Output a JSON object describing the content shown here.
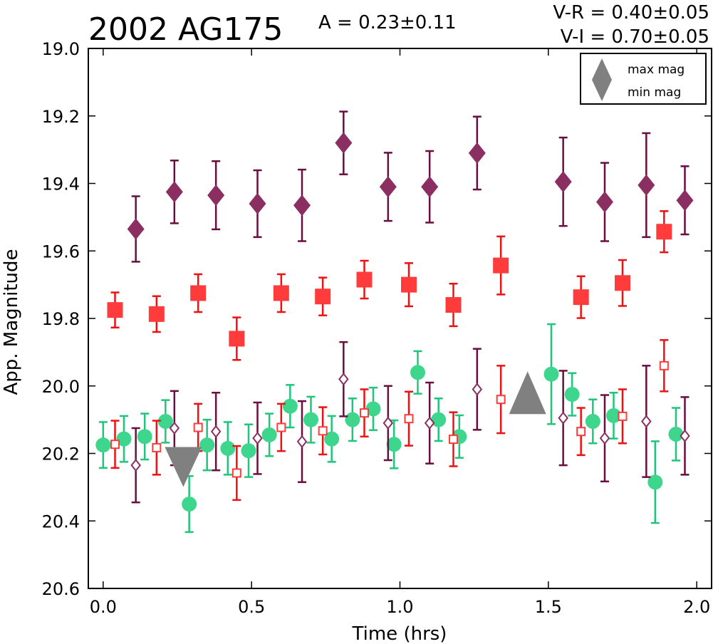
{
  "chart_data": {
    "type": "scatter",
    "title": "2002 AG175",
    "annotations": {
      "amplitude": "A  = 0.23±0.11",
      "v_r": "V-R = 0.40±0.05",
      "v_i": "V-I  = 0.70±0.05"
    },
    "xlabel": "Time (hrs)",
    "ylabel": "App. Magnitude",
    "xlim": [
      -0.05,
      2.05
    ],
    "ylim": [
      20.6,
      19.0
    ],
    "y_inverted": true,
    "x_ticks": [
      "0.0",
      "0.5",
      "1.0",
      "1.5",
      "2.0"
    ],
    "x_tick_values": [
      0.0,
      0.5,
      1.0,
      1.5,
      2.0
    ],
    "y_ticks": [
      "19.0",
      "19.2",
      "19.4",
      "19.6",
      "19.8",
      "20.0",
      "20.2",
      "20.4",
      "20.6"
    ],
    "y_tick_values": [
      19.0,
      19.2,
      19.4,
      19.6,
      19.8,
      20.0,
      20.2,
      20.4,
      20.6
    ],
    "grid": false,
    "legend_position": "top-right",
    "legend": [
      {
        "label": "max mag",
        "marker": "triangle-up",
        "color": "#808080"
      },
      {
        "label": "min mag",
        "marker": "triangle-down",
        "color": "#808080"
      }
    ],
    "extrema": {
      "max": {
        "x": 1.43,
        "y": 20.02,
        "color": "#808080"
      },
      "min": {
        "x": 0.27,
        "y": 20.24,
        "color": "#808080"
      }
    },
    "series": [
      {
        "marker": "diamond",
        "fill": "#8b2f62",
        "errcolor": "#6a0d3f",
        "points": [
          {
            "x": 0.11,
            "y": 19.535,
            "err": 0.097
          },
          {
            "x": 0.24,
            "y": 19.425,
            "err": 0.093
          },
          {
            "x": 0.38,
            "y": 19.435,
            "err": 0.101
          },
          {
            "x": 0.52,
            "y": 19.46,
            "err": 0.099
          },
          {
            "x": 0.67,
            "y": 19.465,
            "err": 0.106
          },
          {
            "x": 0.81,
            "y": 19.28,
            "err": 0.093
          },
          {
            "x": 0.96,
            "y": 19.41,
            "err": 0.101
          },
          {
            "x": 1.1,
            "y": 19.41,
            "err": 0.106
          },
          {
            "x": 1.26,
            "y": 19.31,
            "err": 0.108
          },
          {
            "x": 1.55,
            "y": 19.395,
            "err": 0.131
          },
          {
            "x": 1.69,
            "y": 19.455,
            "err": 0.116
          },
          {
            "x": 1.83,
            "y": 19.405,
            "err": 0.154
          },
          {
            "x": 1.96,
            "y": 19.45,
            "err": 0.101
          }
        ]
      },
      {
        "marker": "square",
        "fill": "#ff3b3b",
        "errcolor": "#ee1111",
        "points": [
          {
            "x": 0.04,
            "y": 19.775,
            "err": 0.052
          },
          {
            "x": 0.18,
            "y": 19.787,
            "err": 0.053
          },
          {
            "x": 0.32,
            "y": 19.725,
            "err": 0.056
          },
          {
            "x": 0.45,
            "y": 19.86,
            "err": 0.063
          },
          {
            "x": 0.6,
            "y": 19.725,
            "err": 0.056
          },
          {
            "x": 0.74,
            "y": 19.735,
            "err": 0.056
          },
          {
            "x": 0.88,
            "y": 19.685,
            "err": 0.056
          },
          {
            "x": 1.03,
            "y": 19.7,
            "err": 0.064
          },
          {
            "x": 1.18,
            "y": 19.76,
            "err": 0.063
          },
          {
            "x": 1.34,
            "y": 19.643,
            "err": 0.086
          },
          {
            "x": 1.61,
            "y": 19.737,
            "err": 0.062
          },
          {
            "x": 1.75,
            "y": 19.695,
            "err": 0.068
          },
          {
            "x": 1.89,
            "y": 19.543,
            "err": 0.061
          }
        ]
      },
      {
        "marker": "circle",
        "fill": "#3dd68c",
        "errcolor": "#1fc57a",
        "points": [
          {
            "x": 0.0,
            "y": 20.175,
            "err": 0.068
          },
          {
            "x": 0.07,
            "y": 20.157,
            "err": 0.068
          },
          {
            "x": 0.14,
            "y": 20.15,
            "err": 0.068
          },
          {
            "x": 0.21,
            "y": 20.105,
            "err": 0.063
          },
          {
            "x": 0.29,
            "y": 20.35,
            "err": 0.083
          },
          {
            "x": 0.35,
            "y": 20.175,
            "err": 0.075
          },
          {
            "x": 0.42,
            "y": 20.185,
            "err": 0.078
          },
          {
            "x": 0.49,
            "y": 20.192,
            "err": 0.078
          },
          {
            "x": 0.56,
            "y": 20.145,
            "err": 0.063
          },
          {
            "x": 0.63,
            "y": 20.06,
            "err": 0.063
          },
          {
            "x": 0.7,
            "y": 20.1,
            "err": 0.068
          },
          {
            "x": 0.77,
            "y": 20.157,
            "err": 0.068
          },
          {
            "x": 0.84,
            "y": 20.1,
            "err": 0.063
          },
          {
            "x": 0.91,
            "y": 20.068,
            "err": 0.063
          },
          {
            "x": 0.98,
            "y": 20.173,
            "err": 0.071
          },
          {
            "x": 1.06,
            "y": 19.96,
            "err": 0.063
          },
          {
            "x": 1.13,
            "y": 20.1,
            "err": 0.063
          },
          {
            "x": 1.2,
            "y": 20.15,
            "err": 0.063
          },
          {
            "x": 1.51,
            "y": 19.965,
            "err": 0.148
          },
          {
            "x": 1.58,
            "y": 20.025,
            "err": 0.063
          },
          {
            "x": 1.65,
            "y": 20.105,
            "err": 0.065
          },
          {
            "x": 1.72,
            "y": 20.088,
            "err": 0.068
          },
          {
            "x": 1.86,
            "y": 20.285,
            "err": 0.121
          },
          {
            "x": 1.93,
            "y": 20.143,
            "err": 0.078
          }
        ]
      },
      {
        "marker": "diamond-open",
        "fill": "none",
        "stroke": "#8b2f62",
        "errcolor": "#6a0d3f",
        "points": [
          {
            "x": 0.11,
            "y": 20.235,
            "err": 0.11
          },
          {
            "x": 0.24,
            "y": 20.125,
            "err": 0.11
          },
          {
            "x": 0.38,
            "y": 20.135,
            "err": 0.115
          },
          {
            "x": 0.52,
            "y": 20.155,
            "err": 0.106
          },
          {
            "x": 0.67,
            "y": 20.165,
            "err": 0.12
          },
          {
            "x": 0.81,
            "y": 19.98,
            "err": 0.11
          },
          {
            "x": 0.96,
            "y": 20.11,
            "err": 0.11
          },
          {
            "x": 1.1,
            "y": 20.11,
            "err": 0.12
          },
          {
            "x": 1.26,
            "y": 20.01,
            "err": 0.12
          },
          {
            "x": 1.55,
            "y": 20.095,
            "err": 0.14
          },
          {
            "x": 1.69,
            "y": 20.155,
            "err": 0.128
          },
          {
            "x": 1.83,
            "y": 20.105,
            "err": 0.165
          },
          {
            "x": 1.96,
            "y": 20.148,
            "err": 0.115
          }
        ]
      },
      {
        "marker": "square-open",
        "fill": "none",
        "stroke": "#ff3b3b",
        "errcolor": "#ee1111",
        "points": [
          {
            "x": 0.04,
            "y": 20.173,
            "err": 0.07
          },
          {
            "x": 0.18,
            "y": 20.183,
            "err": 0.08
          },
          {
            "x": 0.32,
            "y": 20.123,
            "err": 0.07
          },
          {
            "x": 0.45,
            "y": 20.258,
            "err": 0.08
          },
          {
            "x": 0.6,
            "y": 20.123,
            "err": 0.07
          },
          {
            "x": 0.74,
            "y": 20.133,
            "err": 0.07
          },
          {
            "x": 0.88,
            "y": 20.08,
            "err": 0.07
          },
          {
            "x": 1.03,
            "y": 20.097,
            "err": 0.08
          },
          {
            "x": 1.18,
            "y": 20.158,
            "err": 0.08
          },
          {
            "x": 1.34,
            "y": 20.04,
            "err": 0.1
          },
          {
            "x": 1.61,
            "y": 20.135,
            "err": 0.07
          },
          {
            "x": 1.75,
            "y": 20.09,
            "err": 0.08
          },
          {
            "x": 1.89,
            "y": 19.94,
            "err": 0.076
          }
        ]
      }
    ]
  }
}
